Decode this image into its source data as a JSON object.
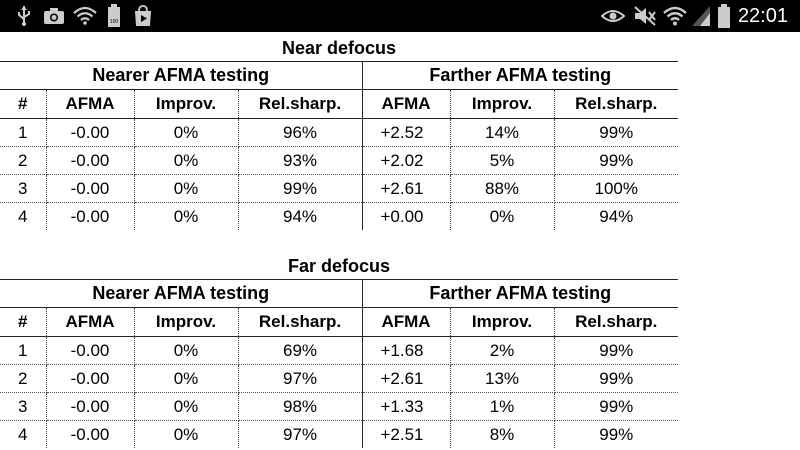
{
  "status_bar": {
    "time": "22:01",
    "icons_left": [
      "usb-icon",
      "camera-icon",
      "wifi-notification-icon",
      "battery-100-icon",
      "play-store-icon"
    ],
    "icons_right": [
      "eye-icon",
      "mute-icon",
      "wifi-icon",
      "signal-icon",
      "battery-icon"
    ]
  },
  "columns": {
    "index": "#",
    "group_nearer": "Nearer AFMA testing",
    "group_farther": "Farther AFMA testing",
    "afma": "AFMA",
    "improv": "Improv.",
    "rel_sharp": "Rel.sharp."
  },
  "tables": [
    {
      "title": "Near defocus",
      "rows": [
        {
          "n": "1",
          "near_afma": "-0.00",
          "near_imp": "0%",
          "near_rel": "96%",
          "far_afma": "+2.52",
          "far_imp": "14%",
          "far_rel": "99%"
        },
        {
          "n": "2",
          "near_afma": "-0.00",
          "near_imp": "0%",
          "near_rel": "93%",
          "far_afma": "+2.02",
          "far_imp": "5%",
          "far_rel": "99%"
        },
        {
          "n": "3",
          "near_afma": "-0.00",
          "near_imp": "0%",
          "near_rel": "99%",
          "far_afma": "+2.61",
          "far_imp": "88%",
          "far_rel": "100%"
        },
        {
          "n": "4",
          "near_afma": "-0.00",
          "near_imp": "0%",
          "near_rel": "94%",
          "far_afma": "+0.00",
          "far_imp": "0%",
          "far_rel": "94%"
        }
      ]
    },
    {
      "title": "Far defocus",
      "rows": [
        {
          "n": "1",
          "near_afma": "-0.00",
          "near_imp": "0%",
          "near_rel": "69%",
          "far_afma": "+1.68",
          "far_imp": "2%",
          "far_rel": "99%"
        },
        {
          "n": "2",
          "near_afma": "-0.00",
          "near_imp": "0%",
          "near_rel": "97%",
          "far_afma": "+2.61",
          "far_imp": "13%",
          "far_rel": "99%"
        },
        {
          "n": "3",
          "near_afma": "-0.00",
          "near_imp": "0%",
          "near_rel": "98%",
          "far_afma": "+1.33",
          "far_imp": "1%",
          "far_rel": "99%"
        },
        {
          "n": "4",
          "near_afma": "-0.00",
          "near_imp": "0%",
          "near_rel": "97%",
          "far_afma": "+2.51",
          "far_imp": "8%",
          "far_rel": "99%"
        }
      ]
    }
  ]
}
